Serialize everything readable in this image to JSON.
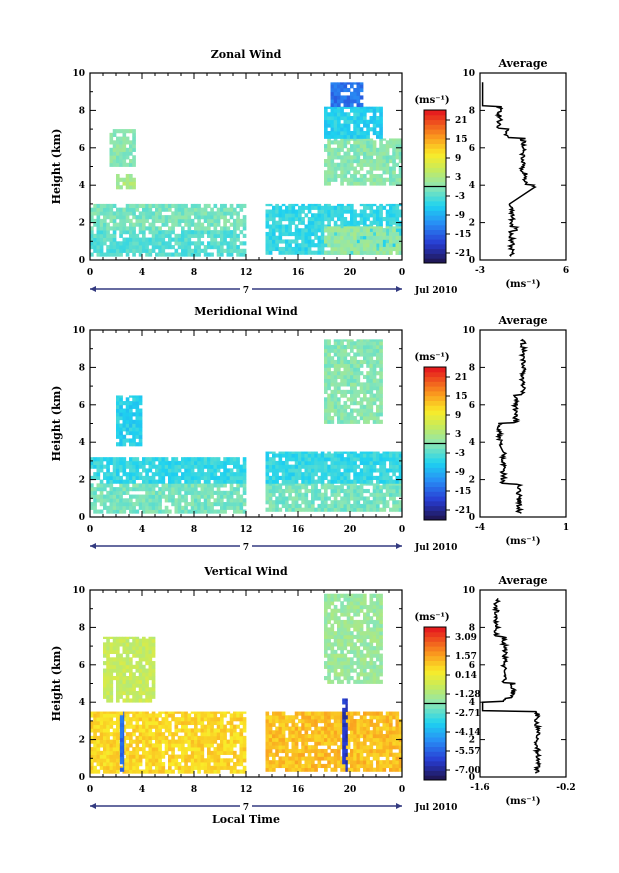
{
  "chart_data": [
    {
      "type": "heatmap",
      "title": "Zonal Wind",
      "ylabel": "Height (km)",
      "ylim": [
        0,
        10
      ],
      "xlim": [
        0,
        24
      ],
      "x_ticks": [
        "0",
        "4",
        "8",
        "12",
        "16",
        "20",
        "0"
      ],
      "y_ticks": [
        "0",
        "2",
        "4",
        "6",
        "8",
        "10"
      ],
      "date_marker": "7",
      "date_label": "Jul 2010",
      "colorbar": {
        "unit": "(ms⁻¹)",
        "labels": [
          "21",
          "15",
          "9",
          "3",
          "-3",
          "-9",
          "-15",
          "-21"
        ],
        "range": [
          -24,
          24
        ]
      },
      "regions": [
        {
          "t0": 0.0,
          "t1": 12.0,
          "h0": 0.2,
          "h1": 1.6,
          "value": -3
        },
        {
          "t0": 0.0,
          "t1": 12.0,
          "h0": 1.6,
          "h1": 3.0,
          "value": -1
        },
        {
          "t0": 1.5,
          "t1": 3.5,
          "h0": 5.0,
          "h1": 7.0,
          "value": 0
        },
        {
          "t0": 2.0,
          "t1": 3.5,
          "h0": 3.8,
          "h1": 4.6,
          "value": 3
        },
        {
          "t0": 13.5,
          "t1": 24.0,
          "h0": 0.3,
          "h1": 3.0,
          "value": -5
        },
        {
          "t0": 18.0,
          "t1": 24.0,
          "h0": 0.3,
          "h1": 1.8,
          "value": 1
        },
        {
          "t0": 18.0,
          "t1": 24.0,
          "h0": 4.0,
          "h1": 6.5,
          "value": 0
        },
        {
          "t0": 18.0,
          "t1": 22.5,
          "h0": 6.5,
          "h1": 8.2,
          "value": -6
        },
        {
          "t0": 18.5,
          "t1": 21.0,
          "h0": 8.2,
          "h1": 9.5,
          "value": -14
        }
      ],
      "average": {
        "title": "Average",
        "unit": "(ms⁻¹)",
        "xlim": [
          -3,
          6
        ],
        "x_ticks": [
          "-3",
          "6"
        ],
        "y_ticks": [
          "0",
          "2",
          "4",
          "6",
          "8",
          "10"
        ]
      }
    },
    {
      "type": "heatmap",
      "title": "Meridional Wind",
      "ylabel": "Height (km)",
      "ylim": [
        0,
        10
      ],
      "xlim": [
        0,
        24
      ],
      "x_ticks": [
        "0",
        "4",
        "8",
        "12",
        "16",
        "20",
        "0"
      ],
      "y_ticks": [
        "0",
        "2",
        "4",
        "6",
        "8",
        "10"
      ],
      "date_marker": "7",
      "date_label": "Jul 2010",
      "colorbar": {
        "unit": "(ms⁻¹)",
        "labels": [
          "21",
          "15",
          "9",
          "3",
          "-3",
          "-9",
          "-15",
          "-21"
        ],
        "range": [
          -24,
          24
        ]
      },
      "regions": [
        {
          "t0": 0.0,
          "t1": 12.0,
          "h0": 0.2,
          "h1": 1.8,
          "value": -1
        },
        {
          "t0": 0.0,
          "t1": 12.0,
          "h0": 1.8,
          "h1": 3.2,
          "value": -5
        },
        {
          "t0": 2.0,
          "t1": 4.0,
          "h0": 3.8,
          "h1": 6.5,
          "value": -6
        },
        {
          "t0": 13.5,
          "t1": 24.0,
          "h0": 0.3,
          "h1": 1.8,
          "value": -1
        },
        {
          "t0": 13.5,
          "t1": 24.0,
          "h0": 1.8,
          "h1": 3.5,
          "value": -5
        },
        {
          "t0": 18.0,
          "t1": 22.5,
          "h0": 5.0,
          "h1": 9.5,
          "value": 0
        }
      ],
      "average": {
        "title": "Average",
        "unit": "(ms⁻¹)",
        "xlim": [
          -4,
          1
        ],
        "x_ticks": [
          "-4",
          "1"
        ],
        "y_ticks": [
          "0",
          "2",
          "4",
          "6",
          "8",
          "10"
        ]
      }
    },
    {
      "type": "heatmap",
      "title": "Vertical Wind",
      "ylabel": "Height (km)",
      "ylim": [
        0,
        10
      ],
      "xlim": [
        0,
        24
      ],
      "x_ticks": [
        "0",
        "4",
        "8",
        "12",
        "16",
        "20",
        "0"
      ],
      "y_ticks": [
        "0",
        "2",
        "4",
        "6",
        "8",
        "10"
      ],
      "date_marker": "7",
      "date_label": "Jul 2010",
      "xlabel": "Local Time",
      "colorbar": {
        "unit": "(ms⁻¹)",
        "labels": [
          "3.09",
          "1.57",
          "0.14",
          "-1.28",
          "-2.71",
          "-4.14",
          "-5.57",
          "-7.00"
        ],
        "range": [
          -7.7,
          3.8
        ]
      },
      "regions": [
        {
          "t0": 0.0,
          "t1": 12.0,
          "h0": 0.2,
          "h1": 3.5,
          "value": 0.9
        },
        {
          "t0": 1.0,
          "t1": 5.0,
          "h0": 4.0,
          "h1": 7.5,
          "value": -0.6
        },
        {
          "t0": 13.5,
          "t1": 24.0,
          "h0": 0.3,
          "h1": 3.5,
          "value": 1.3
        },
        {
          "t0": 18.0,
          "t1": 22.5,
          "h0": 5.0,
          "h1": 9.8,
          "value": -1.6
        },
        {
          "t0": 2.3,
          "t1": 2.6,
          "h0": 0.3,
          "h1": 3.5,
          "value": -5.5
        },
        {
          "t0": 19.4,
          "t1": 19.8,
          "h0": 0.3,
          "h1": 4.2,
          "value": -6.5
        }
      ],
      "average": {
        "title": "Average",
        "unit": "(ms⁻¹)",
        "xlim": [
          -1.6,
          -0.2
        ],
        "x_ticks": [
          "-1.6",
          "-0.2"
        ],
        "y_ticks": [
          "0",
          "2",
          "4",
          "6",
          "8",
          "10"
        ]
      }
    }
  ]
}
